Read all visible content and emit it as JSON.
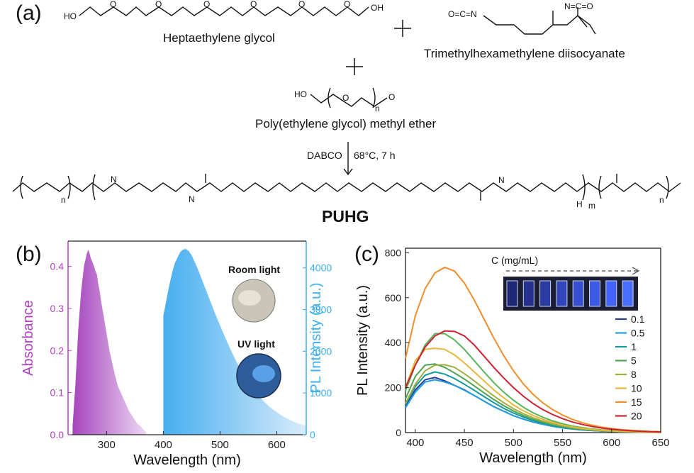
{
  "panel_a": {
    "label": "(a)",
    "reactant1_name": "Heptaethylene glycol",
    "reactant2_name": "Trimethylhexamethylene diisocyanate",
    "reactant3_name": "Poly(ethylene glycol) methyl ether",
    "catalyst": "DABCO",
    "conditions": "68°C, 7 h",
    "product_name": "PUHG",
    "plus_sign": "+",
    "atoms": {
      "ho": "HO",
      "oh": "OH",
      "o": "O",
      "n_eq": "N=C=O",
      "o_eq": "O=C=N",
      "h": "H",
      "n": "N",
      "me": "O",
      "sub_n": "n",
      "sub_m": "m"
    }
  },
  "chart_data": [
    {
      "type": "area",
      "panel_label": "(b)",
      "xlabel": "Wavelength (nm)",
      "ylabel_left": "Absorbance",
      "ylabel_right": "PL Intensity (a.u.)",
      "xlim": [
        232,
        652
      ],
      "ylim_left": [
        0,
        0.46
      ],
      "ylim_right": [
        0,
        4640
      ],
      "x_ticks": [
        300,
        400,
        500,
        600
      ],
      "y_ticks_left": [
        0.0,
        0.1,
        0.2,
        0.3,
        0.4
      ],
      "y_ticks_right": [
        0,
        1000,
        2000,
        3000,
        4000
      ],
      "colors": {
        "absorbance": "#c77dd6",
        "pl": "#5ab8f0",
        "axis_left": "#b040c0",
        "axis_right": "#3aaef0"
      },
      "series": [
        {
          "name": "Absorbance",
          "axis": "left",
          "x": [
            240,
            245,
            250,
            255,
            260,
            265,
            268,
            270,
            272,
            275,
            278,
            280,
            283,
            285,
            288,
            290,
            295,
            300,
            305,
            310,
            315,
            320,
            325,
            330,
            335,
            340,
            345,
            350,
            355,
            360,
            365,
            370
          ],
          "y": [
            0.02,
            0.12,
            0.25,
            0.34,
            0.4,
            0.43,
            0.44,
            0.43,
            0.42,
            0.41,
            0.4,
            0.39,
            0.38,
            0.36,
            0.34,
            0.32,
            0.28,
            0.24,
            0.2,
            0.17,
            0.14,
            0.115,
            0.1,
            0.085,
            0.07,
            0.055,
            0.045,
            0.035,
            0.025,
            0.02,
            0.012,
            0.005
          ]
        },
        {
          "name": "PL Intensity",
          "axis": "right",
          "x": [
            400,
            405,
            410,
            415,
            420,
            425,
            430,
            435,
            440,
            445,
            450,
            460,
            470,
            480,
            490,
            500,
            510,
            520,
            530,
            540,
            550,
            560,
            570,
            580,
            590,
            600,
            610,
            620,
            630,
            640,
            650
          ],
          "y": [
            2850,
            3200,
            3550,
            3850,
            4100,
            4250,
            4380,
            4440,
            4450,
            4400,
            4300,
            4000,
            3650,
            3300,
            2950,
            2620,
            2300,
            2000,
            1720,
            1470,
            1250,
            1060,
            900,
            760,
            640,
            540,
            450,
            375,
            310,
            260,
            220
          ]
        }
      ],
      "inset_labels": {
        "room": "Room light",
        "uv": "UV light"
      }
    },
    {
      "type": "line",
      "panel_label": "(c)",
      "xlabel": "Wavelength (nm)",
      "ylabel": "PL Intensity (a.u.)",
      "xlim": [
        390,
        650
      ],
      "ylim": [
        0,
        820
      ],
      "x_ticks": [
        400,
        450,
        500,
        550,
        600,
        650
      ],
      "y_ticks": [
        0,
        200,
        400,
        600,
        800
      ],
      "inset_axis_label": "C (mg/mL)",
      "x": [
        390,
        400,
        410,
        420,
        430,
        440,
        450,
        460,
        470,
        480,
        490,
        500,
        510,
        520,
        530,
        540,
        550,
        560,
        570,
        580,
        590,
        600,
        610,
        620,
        630,
        640,
        650
      ],
      "series": [
        {
          "name": "0.1",
          "color": "#2b3a8f",
          "values": [
            115,
            190,
            235,
            245,
            230,
            210,
            190,
            165,
            140,
            115,
            95,
            75,
            60,
            47,
            37,
            28,
            21,
            16,
            12,
            9,
            7,
            5,
            4,
            3,
            2,
            2,
            1
          ]
        },
        {
          "name": "0.5",
          "color": "#1f9fe0",
          "values": [
            110,
            180,
            225,
            235,
            225,
            210,
            188,
            165,
            140,
            115,
            95,
            75,
            60,
            47,
            37,
            28,
            21,
            16,
            12,
            9,
            7,
            5,
            4,
            3,
            2,
            2,
            1
          ]
        },
        {
          "name": "1",
          "color": "#139aa0",
          "values": [
            125,
            205,
            255,
            270,
            260,
            240,
            215,
            188,
            160,
            133,
            108,
            87,
            69,
            54,
            42,
            32,
            24,
            18,
            13,
            10,
            7,
            5,
            4,
            3,
            2,
            2,
            1
          ]
        },
        {
          "name": "5",
          "color": "#4ea34e",
          "values": [
            150,
            250,
            300,
            305,
            290,
            265,
            238,
            208,
            177,
            147,
            120,
            96,
            76,
            59,
            46,
            35,
            27,
            20,
            15,
            11,
            8,
            6,
            4,
            3,
            2,
            2,
            1
          ]
        },
        {
          "name": "8",
          "color": "#9fae3e",
          "values": [
            130,
            215,
            275,
            300,
            302,
            290,
            262,
            230,
            196,
            163,
            133,
            106,
            84,
            66,
            51,
            39,
            30,
            22,
            16,
            12,
            9,
            6,
            5,
            3,
            2,
            2,
            1
          ]
        },
        {
          "name": "10",
          "color": "#e6b73a",
          "values": [
            200,
            320,
            370,
            375,
            370,
            345,
            310,
            270,
            230,
            190,
            155,
            123,
            97,
            76,
            59,
            45,
            34,
            25,
            19,
            14,
            10,
            7,
            5,
            4,
            3,
            2,
            1
          ]
        },
        {
          "name": "15",
          "color": "#f08f2a",
          "values": [
            330,
            520,
            640,
            710,
            735,
            718,
            665,
            590,
            505,
            420,
            343,
            275,
            217,
            170,
            132,
            102,
            78,
            59,
            44,
            33,
            24,
            18,
            13,
            10,
            7,
            5,
            4
          ]
        },
        {
          "name": "20",
          "color": "#cc2230",
          "values": [
            200,
            300,
            380,
            430,
            452,
            450,
            430,
            390,
            340,
            290,
            243,
            200,
            162,
            129,
            102,
            80,
            62,
            47,
            36,
            27,
            20,
            15,
            11,
            8,
            6,
            4,
            3
          ]
        }
      ],
      "extra_series": [
        {
          "name": "",
          "color": "#56b55a",
          "values": [
            185,
            300,
            390,
            440,
            440,
            412,
            370,
            320,
            270,
            222,
            180,
            144,
            113,
            88,
            68,
            52,
            39,
            29,
            22,
            16,
            12,
            9,
            6,
            5,
            3,
            2,
            2
          ]
        }
      ]
    }
  ]
}
